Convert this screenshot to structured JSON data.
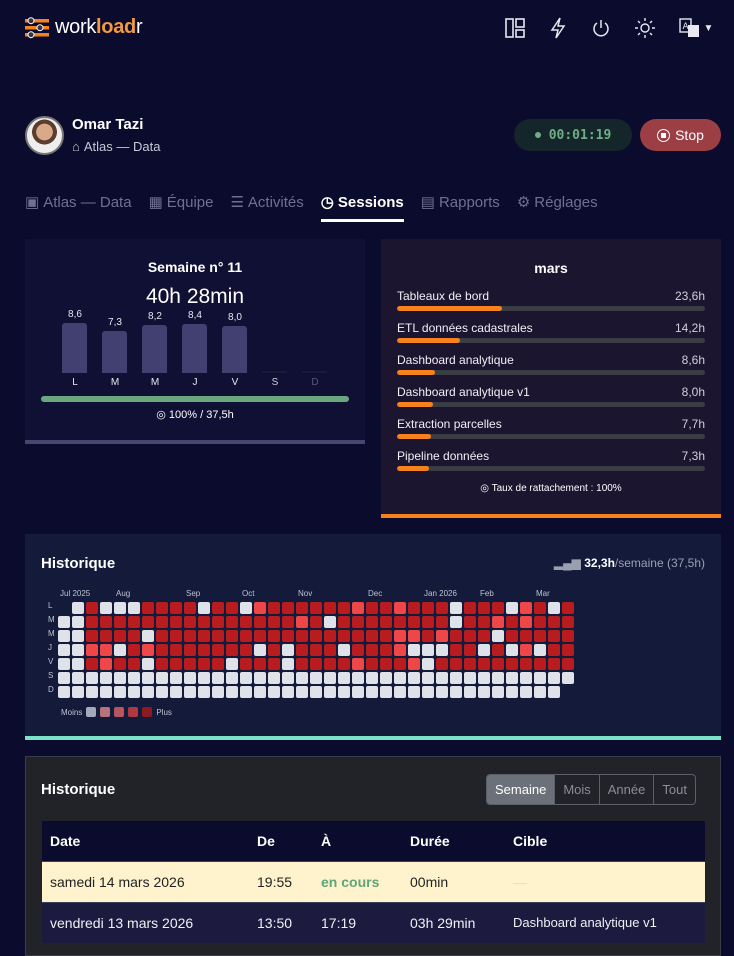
{
  "header": {
    "logo_prefix": "work",
    "logo_accent": "load",
    "logo_suffix": "r",
    "icons": [
      "layout-icon",
      "bolt-icon",
      "power-icon",
      "sun-icon",
      "translate-icon"
    ]
  },
  "profile": {
    "name": "Omar Tazi",
    "team": "Atlas — Data",
    "timer": "00:01:19",
    "stop_label": "Stop"
  },
  "tabs": [
    {
      "label": "Atlas — Data",
      "icon": "user-card-icon"
    },
    {
      "label": "Équipe",
      "icon": "grid-icon"
    },
    {
      "label": "Activités",
      "icon": "user-list-icon"
    },
    {
      "label": "Sessions",
      "icon": "clock-icon",
      "active": true
    },
    {
      "label": "Rapports",
      "icon": "report-icon"
    },
    {
      "label": "Réglages",
      "icon": "gear-icon"
    }
  ],
  "week": {
    "title": "Semaine n° 11",
    "total": "40h 28min",
    "days": [
      {
        "d": "L",
        "v": 8.6,
        "label": "8,6"
      },
      {
        "d": "M",
        "v": 7.3,
        "label": "7,3"
      },
      {
        "d": "M",
        "v": 8.2,
        "label": "8,2"
      },
      {
        "d": "J",
        "v": 8.4,
        "label": "8,4"
      },
      {
        "d": "V",
        "v": 8.0,
        "label": "8,0"
      },
      {
        "d": "S",
        "v": 0,
        "label": ""
      },
      {
        "d": "D",
        "v": 0,
        "label": ""
      }
    ],
    "progress_pct": 100,
    "progress_text": "100% / 37,5h",
    "progress_color": "#6aa67e"
  },
  "month": {
    "title": "mars",
    "items": [
      {
        "label": "Tableaux de bord",
        "v": 23.6,
        "value": "23,6h"
      },
      {
        "label": "ETL données cadastrales",
        "v": 14.2,
        "value": "14,2h"
      },
      {
        "label": "Dashboard analytique",
        "v": 8.6,
        "value": "8,6h"
      },
      {
        "label": "Dashboard analytique v1",
        "v": 8.0,
        "value": "8,0h"
      },
      {
        "label": "Extraction parcelles",
        "v": 7.7,
        "value": "7,7h"
      },
      {
        "label": "Pipeline données",
        "v": 7.3,
        "value": "7,3h"
      }
    ],
    "footer": "Taux de rattachement : 100%",
    "accent": "#f5821f"
  },
  "heatmap": {
    "title": "Historique",
    "avg": "32,3h",
    "avg_unit": "/semaine",
    "target": "(37,5h)",
    "months": [
      "Jul 2025",
      "Aug",
      "Sep",
      "Oct",
      "Nov",
      "Dec",
      "Jan 2026",
      "Feb",
      "Mar"
    ],
    "day_labels": [
      "L",
      "M",
      "M",
      "J",
      "V",
      "S",
      "D"
    ],
    "legend_less": "Moins",
    "legend_more": "Plus",
    "rows": [
      ".020002222022012222221221222022201202",
      "0022222222222222212022222222022121222",
      "0022220222222222222222221121222022222",
      "0011021222222202022202221000220201022",
      "0021220222220222022221222102222222222",
      "0000000000000000000000000000000000000",
      "000000000000000000000000000000000000."
    ],
    "colors": {
      "0": "#dfe2e8",
      "1": "#ef4747",
      "2": "#b91c1f"
    }
  },
  "sessions": {
    "title": "Historique",
    "filters": [
      {
        "label": "Semaine",
        "active": true
      },
      {
        "label": "Mois"
      },
      {
        "label": "Année"
      },
      {
        "label": "Tout"
      }
    ],
    "columns": [
      "Date",
      "De",
      "À",
      "Durée",
      "Cible"
    ],
    "rows": [
      {
        "date": "samedi 14 mars 2026",
        "from": "19:55",
        "to": "en cours",
        "duration": "00min",
        "target": "—",
        "current": true
      },
      {
        "date": "vendredi 13 mars 2026",
        "from": "13:50",
        "to": "17:19",
        "duration": "03h 29min",
        "target": "Dashboard analytique v1"
      }
    ]
  }
}
